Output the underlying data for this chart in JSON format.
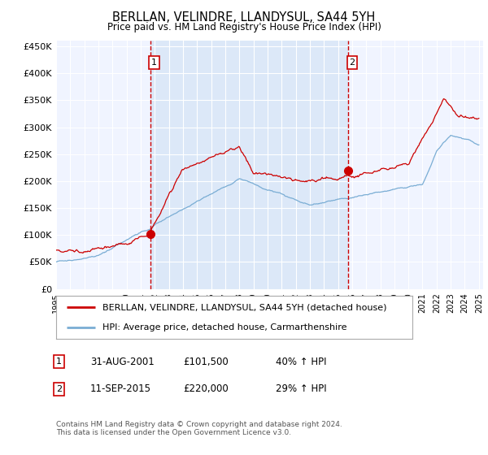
{
  "title": "BERLLAN, VELINDRE, LLANDYSUL, SA44 5YH",
  "subtitle": "Price paid vs. HM Land Registry's House Price Index (HPI)",
  "ylabel_ticks": [
    "£0",
    "£50K",
    "£100K",
    "£150K",
    "£200K",
    "£250K",
    "£300K",
    "£350K",
    "£400K",
    "£450K"
  ],
  "ytick_values": [
    0,
    50000,
    100000,
    150000,
    200000,
    250000,
    300000,
    350000,
    400000,
    450000
  ],
  "ylim": [
    0,
    460000
  ],
  "xlim_start": 1995.0,
  "xlim_end": 2025.3,
  "plot_bg": "#f0f4ff",
  "shaded_bg": "#dce8f8",
  "grid_color": "#ffffff",
  "red_color": "#cc0000",
  "blue_color": "#7aadd4",
  "marker1_x": 2001.67,
  "marker1_y": 101500,
  "marker2_x": 2015.71,
  "marker2_y": 220000,
  "legend_label_red": "BERLLAN, VELINDRE, LLANDYSUL, SA44 5YH (detached house)",
  "legend_label_blue": "HPI: Average price, detached house, Carmarthenshire",
  "annotation1_date": "31-AUG-2001",
  "annotation1_price": "£101,500",
  "annotation1_hpi": "40% ↑ HPI",
  "annotation2_date": "11-SEP-2015",
  "annotation2_price": "£220,000",
  "annotation2_hpi": "29% ↑ HPI",
  "footer": "Contains HM Land Registry data © Crown copyright and database right 2024.\nThis data is licensed under the Open Government Licence v3.0.",
  "xtick_years": [
    1995,
    1996,
    1997,
    1998,
    1999,
    2000,
    2001,
    2002,
    2003,
    2004,
    2005,
    2006,
    2007,
    2008,
    2009,
    2010,
    2011,
    2012,
    2013,
    2014,
    2015,
    2016,
    2017,
    2018,
    2019,
    2020,
    2021,
    2022,
    2023,
    2024,
    2025
  ]
}
